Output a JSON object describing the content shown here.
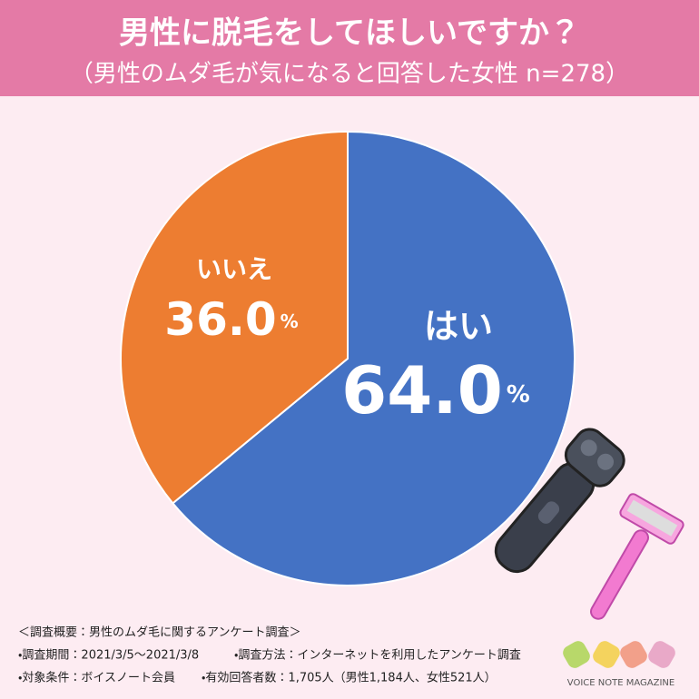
{
  "chart_data": {
    "type": "pie",
    "title": "男性に脱毛をしてほしいですか？",
    "subtitle": "（男性のムダ毛が気になると回答した女性 n=278）",
    "categories": [
      "はい",
      "いいえ"
    ],
    "values": [
      64.0,
      36.0
    ],
    "value_labels": [
      "64.0",
      "36.0"
    ],
    "unit": "%",
    "colors": [
      "#4472c4",
      "#ed7d31"
    ]
  },
  "footer": {
    "heading": "＜調査概要：男性のムダ毛に関するアンケート調査＞",
    "items": [
      "・調査期間：2021/3/5〜2021/3/8",
      "・調査方法：インターネットを利用したアンケート調査",
      "・対象条件：ボイスノート会員",
      "・有効回答者数：1,705人（男性1,184人、女性521人）"
    ],
    "logo": "VOICE NOTE MAGAZINE"
  }
}
